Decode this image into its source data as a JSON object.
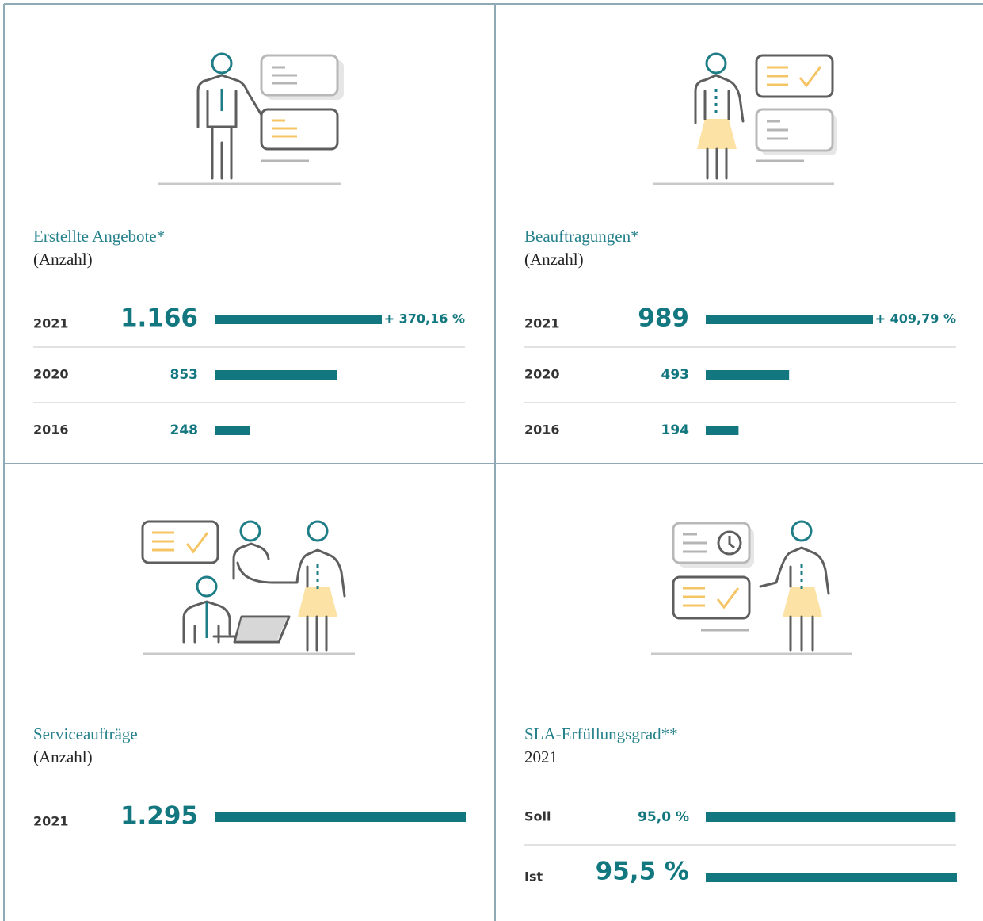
{
  "chart_data": [
    {
      "type": "bar",
      "title": "Erstellte Angebote*",
      "subtitle": "(Anzahl)",
      "categories": [
        "2021",
        "2020",
        "2016"
      ],
      "values": [
        1166,
        853,
        248
      ],
      "value_labels": [
        "1.166",
        "853",
        "248"
      ],
      "annotation": "+ 370,16 %",
      "highlight_index": 0,
      "color": "#137780"
    },
    {
      "type": "bar",
      "title": "Beauftragungen*",
      "subtitle": "(Anzahl)",
      "categories": [
        "2021",
        "2020",
        "2016"
      ],
      "values": [
        989,
        493,
        194
      ],
      "annotation": "+ 409,79 %",
      "highlight_index": 0,
      "color": "#137780"
    },
    {
      "type": "bar",
      "title": "Serviceaufträge",
      "subtitle": "(Anzahl)",
      "categories": [
        "2021"
      ],
      "values": [
        1295
      ],
      "value_labels": [
        "1.295"
      ],
      "highlight_index": 0,
      "color": "#137780"
    },
    {
      "type": "bar",
      "title": "SLA-Erfüllungsgrad**",
      "subtitle": "2021",
      "categories": [
        "Soll",
        "Ist"
      ],
      "values": [
        95.0,
        95.5
      ],
      "value_labels": [
        "95,0 %",
        "95,5 %"
      ],
      "highlight_index": 1,
      "color": "#137780"
    }
  ]
}
